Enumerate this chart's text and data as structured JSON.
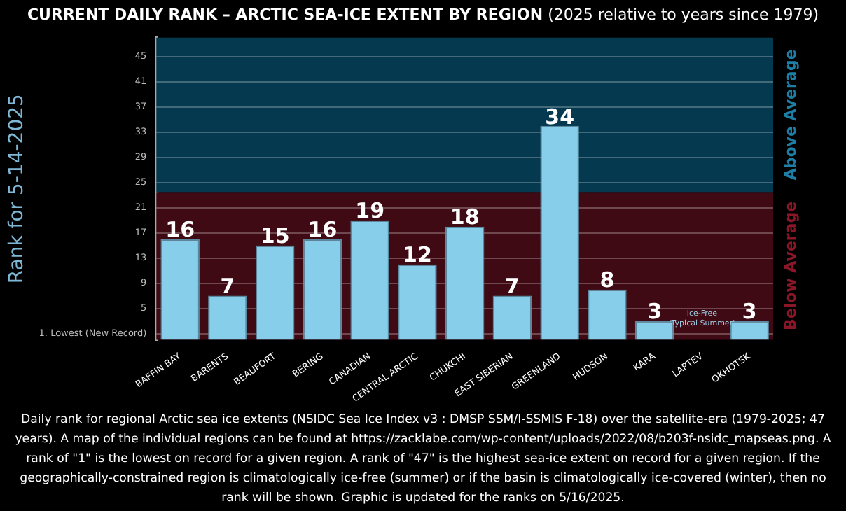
{
  "chart_data": {
    "type": "bar",
    "title": "CURRENT DAILY RANK – ARCTIC SEA-ICE EXTENT BY REGION",
    "subtitle": "(2025 relative to years since 1979)",
    "ylabel": "Rank for 5-14-2025",
    "categories": [
      "BAFFIN BAY",
      "BARENTS",
      "BEAUFORT",
      "BERING",
      "CANADIAN",
      "CENTRAL ARCTIC",
      "CHUKCHI",
      "EAST SIBERIAN",
      "GREENLAND",
      "HUDSON",
      "KARA",
      "LAPTEV",
      "OKHOTSK"
    ],
    "values": [
      16,
      7,
      15,
      16,
      19,
      12,
      18,
      7,
      34,
      8,
      3,
      null,
      3
    ],
    "color": "#87ceeb",
    "data_labels": true,
    "ylim": [
      0,
      48
    ],
    "yticks": [
      {
        "value": 1,
        "label": "1. Lowest (New Record)"
      },
      5,
      9,
      13,
      17,
      21,
      25,
      29,
      33,
      37,
      41,
      45
    ],
    "grid": "y",
    "legend": false,
    "bands": [
      {
        "axis": "y",
        "from": 0,
        "to": 23.5,
        "label": "Below Average",
        "color": "#3f0a14"
      },
      {
        "axis": "y",
        "from": 23.5,
        "to": 48,
        "label": "Above Average",
        "color": "#04394f"
      }
    ],
    "annotations": [
      "Ice-Free 'Typical Summer'",
      "Daily rank for regional Arctic sea ice extents (NSIDC Sea Ice Index v3 : DMSP SSM/I-SSMIS F-18) over the satellite-era (1979-2025; 47 years). A map of the individual regions can be found at https://zacklabe.com/wp-content/uploads/2022/08/b203f-nsidc_mapseas.png. A rank of \"1\" is the lowest on record for a given region. A rank of \"47\" is the highest sea-ice extent on record for a given region. If the geographically-constrained region is climatologically ice-free (summer) or if the basin is climatologically ice-covered (winter), then no rank will be shown. Graphic is updated for the ranks on 5/16/2025."
    ]
  }
}
